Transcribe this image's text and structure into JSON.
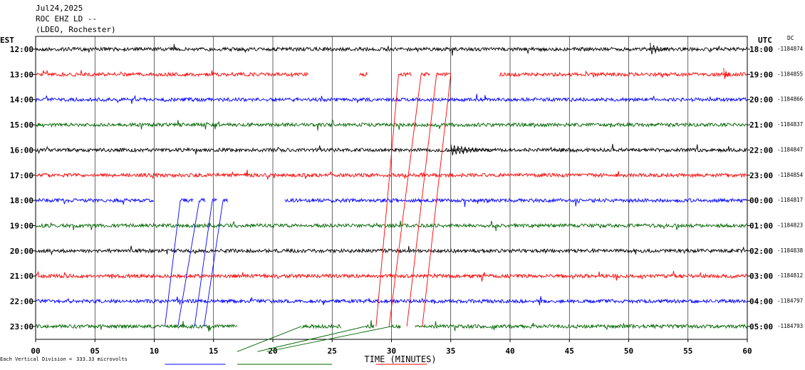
{
  "header": {
    "date": "Jul24,2025",
    "station": "ROC EHZ LD --",
    "network": "(LDEO, Rochester)"
  },
  "labels": {
    "left_tz": "EST",
    "right_tz": "UTC",
    "dc": "DC",
    "footer_prefix": "Each Vertical Division =",
    "footer_value": "333.33 microvolts"
  },
  "colors": {
    "trace_cycle": [
      "#000000",
      "#ff0000",
      "#0000ff",
      "#006600"
    ],
    "grid": "#000000"
  },
  "chart_data": {
    "type": "line",
    "title": "",
    "xlabel": "TIME (MINUTES)",
    "xlim": [
      0,
      60
    ],
    "xticks": [
      "00",
      "05",
      "10",
      "15",
      "20",
      "25",
      "30",
      "35",
      "40",
      "45",
      "50",
      "55",
      "60"
    ],
    "rows": [
      {
        "est": "12:00",
        "utc": "18:00",
        "dc": "-1184874",
        "color": "#000000",
        "gaps": []
      },
      {
        "est": "13:00",
        "utc": "19:00",
        "dc": "-1184855",
        "color": "#ff0000",
        "gaps": [
          [
            23.0,
            27.3
          ],
          [
            28.0,
            30.6
          ],
          [
            31.7,
            32.5
          ],
          [
            33.3,
            33.8
          ],
          [
            35.0,
            39.1
          ]
        ]
      },
      {
        "est": "14:00",
        "utc": "20:00",
        "dc": "-1184866",
        "color": "#0000ff",
        "gaps": []
      },
      {
        "est": "15:00",
        "utc": "21:00",
        "dc": "-1184837",
        "color": "#006600",
        "gaps": []
      },
      {
        "est": "16:00",
        "utc": "22:00",
        "dc": "-1184847",
        "color": "#000000",
        "gaps": []
      },
      {
        "est": "17:00",
        "utc": "23:00",
        "dc": "-1184854",
        "color": "#ff0000",
        "gaps": []
      },
      {
        "est": "18:00",
        "utc": "00:00",
        "dc": "-1184817",
        "color": "#0000ff",
        "gaps": [
          [
            10.0,
            12.2
          ],
          [
            13.3,
            13.8
          ],
          [
            14.3,
            14.9
          ],
          [
            15.3,
            15.8
          ],
          [
            16.2,
            21.0
          ]
        ]
      },
      {
        "est": "19:00",
        "utc": "01:00",
        "dc": "-1184823",
        "color": "#006600",
        "gaps": []
      },
      {
        "est": "20:00",
        "utc": "02:00",
        "dc": "-1184838",
        "color": "#000000",
        "gaps": []
      },
      {
        "est": "21:00",
        "utc": "03:00",
        "dc": "-1184812",
        "color": "#ff0000",
        "gaps": []
      },
      {
        "est": "22:00",
        "utc": "04:00",
        "dc": "-1184797",
        "color": "#0000ff",
        "gaps": []
      },
      {
        "est": "23:00",
        "utc": "05:00",
        "dc": "-1184793",
        "color": "#006600",
        "gaps": [
          [
            17.0,
            22.4
          ],
          [
            25.8,
            27.8
          ],
          [
            28.6,
            30.0
          ],
          [
            30.8,
            32.0
          ]
        ]
      }
    ],
    "dropouts": [
      {
        "color": "#ff0000",
        "from_row": 1,
        "from_min": 30.6,
        "to_row": 11,
        "to_min": 28.7
      },
      {
        "color": "#ff0000",
        "from_row": 1,
        "from_min": 32.5,
        "to_row": 11,
        "to_min": 29.8
      },
      {
        "color": "#ff0000",
        "from_row": 1,
        "from_min": 33.8,
        "to_row": 11,
        "to_min": 31.3
      },
      {
        "color": "#ff0000",
        "from_row": 1,
        "from_min": 35.0,
        "to_row": 11,
        "to_min": 32.6
      },
      {
        "color": "#0000ff",
        "from_row": 6,
        "from_min": 12.2,
        "to_row": 11,
        "to_min": 10.9
      },
      {
        "color": "#0000ff",
        "from_row": 6,
        "from_min": 13.8,
        "to_row": 11,
        "to_min": 12.0
      },
      {
        "color": "#0000ff",
        "from_row": 6,
        "from_min": 14.9,
        "to_row": 11,
        "to_min": 13.4
      },
      {
        "color": "#0000ff",
        "from_row": 6,
        "from_min": 15.8,
        "to_row": 11,
        "to_min": 14.2
      },
      {
        "color": "#006600",
        "from_row": 11,
        "from_min": 22.4,
        "to_row": 12,
        "to_min": 17.0
      },
      {
        "color": "#006600",
        "from_row": 11,
        "from_min": 27.8,
        "to_row": 12,
        "to_min": 18.7
      },
      {
        "color": "#006600",
        "from_row": 11,
        "from_min": 30.0,
        "to_row": 12,
        "to_min": 19.5
      }
    ],
    "events": [
      {
        "row": 4,
        "min": 35.0,
        "len": 3.8,
        "amp": 8
      },
      {
        "row": 1,
        "min": 58.0,
        "len": 0.6,
        "amp": 9
      },
      {
        "row": 0,
        "min": 51.8,
        "len": 1.5,
        "amp": 9
      }
    ],
    "grid": true
  }
}
